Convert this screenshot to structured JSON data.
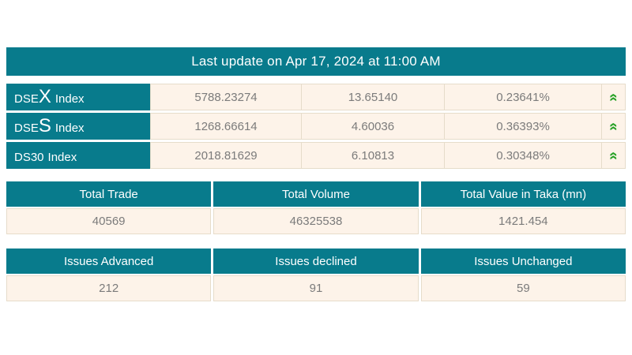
{
  "banner": {
    "text": "Last update on Apr 17, 2024 at 11:00 AM"
  },
  "colors": {
    "teal": "#087b8c",
    "cream": "#fdf3e9",
    "border_tan": "#e6dcca",
    "value_gray": "#7b7b7b",
    "up_green": "#28a228"
  },
  "icons": {
    "double_chevron_up": "«"
  },
  "indices": {
    "rows": [
      {
        "name_pre": "DSE",
        "name_big": "X",
        "name_suffix": "Index",
        "value": "5788.23274",
        "change": "13.65140",
        "change_percent": "0.23641%",
        "direction": "up"
      },
      {
        "name_pre": "DSE",
        "name_big": "S",
        "name_suffix": "Index",
        "value": "1268.66614",
        "change": "4.60036",
        "change_percent": "0.36393%",
        "direction": "up"
      },
      {
        "name_pre": "DS30",
        "name_big": "",
        "name_suffix": "Index",
        "value": "2018.81629",
        "change": "6.10813",
        "change_percent": "0.30348%",
        "direction": "up"
      }
    ]
  },
  "totals": {
    "headers": [
      "Total Trade",
      "Total Volume",
      "Total Value in Taka (mn)"
    ],
    "values": [
      "40569",
      "46325538",
      "1421.454"
    ]
  },
  "issues": {
    "headers": [
      "Issues Advanced",
      "Issues declined",
      "Issues Unchanged"
    ],
    "values": [
      "212",
      "91",
      "59"
    ]
  }
}
